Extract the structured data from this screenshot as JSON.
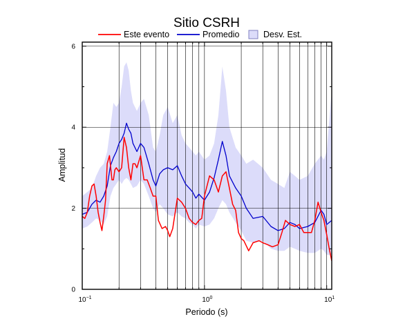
{
  "chart_data": {
    "type": "line",
    "title": "Sitio CSRH",
    "xlabel": "Periodo (s)",
    "ylabel": "Amplitud",
    "x_scale": "log",
    "xlim": [
      0.1,
      11
    ],
    "ylim": [
      0,
      6.1
    ],
    "x_ticks": [
      {
        "base": "10",
        "exp": "−1",
        "value": 0.1
      },
      {
        "base": "10",
        "exp": "0",
        "value": 1
      },
      {
        "base": "10",
        "exp": "1",
        "value": 10
      }
    ],
    "y_ticks": [
      0,
      2,
      4,
      6
    ],
    "grid": "vertical",
    "legend_position": "top",
    "colors": {
      "event": "#ff0000",
      "average": "#0000cc",
      "band": "#dcdcfa",
      "band_stroke": "#8080c0",
      "grid": "#000000"
    },
    "legend": [
      {
        "key": "event",
        "label": "Este evento",
        "kind": "line"
      },
      {
        "key": "average",
        "label": "Promedio",
        "kind": "line"
      },
      {
        "key": "band",
        "label": "Desv. Est.",
        "kind": "box"
      }
    ],
    "series": [
      {
        "name": "Este evento",
        "key": "event",
        "x": [
          0.1,
          0.105,
          0.11,
          0.115,
          0.12,
          0.125,
          0.13,
          0.135,
          0.14,
          0.145,
          0.15,
          0.155,
          0.16,
          0.167,
          0.175,
          0.18,
          0.185,
          0.19,
          0.2,
          0.21,
          0.22,
          0.23,
          0.24,
          0.25,
          0.26,
          0.27,
          0.28,
          0.3,
          0.32,
          0.34,
          0.36,
          0.38,
          0.4,
          0.42,
          0.45,
          0.48,
          0.5,
          0.52,
          0.55,
          0.6,
          0.65,
          0.7,
          0.75,
          0.8,
          0.85,
          0.9,
          0.95,
          1.0,
          1.1,
          1.2,
          1.3,
          1.4,
          1.5,
          1.6,
          1.7,
          1.8,
          1.9,
          2.0,
          2.1,
          2.3,
          2.5,
          2.8,
          3.0,
          3.3,
          3.6,
          4.0,
          4.3,
          4.6,
          5.0,
          5.5,
          6.0,
          6.5,
          7.0,
          7.5,
          8.0,
          8.5,
          9.0,
          9.5,
          10.0,
          10.5,
          11.0
        ],
        "y": [
          1.8,
          1.75,
          1.9,
          2.3,
          2.55,
          2.6,
          2.3,
          1.9,
          1.65,
          1.45,
          1.8,
          2.2,
          3.1,
          3.3,
          2.7,
          2.7,
          2.95,
          3.0,
          2.9,
          3.0,
          3.75,
          3.5,
          3.0,
          2.7,
          3.1,
          3.1,
          3.0,
          3.3,
          2.7,
          2.7,
          2.5,
          2.3,
          2.3,
          1.7,
          1.5,
          1.55,
          1.45,
          1.3,
          1.5,
          2.25,
          2.15,
          2.0,
          1.75,
          1.65,
          1.6,
          1.7,
          1.75,
          2.3,
          2.8,
          2.7,
          2.4,
          2.8,
          2.9,
          2.5,
          2.1,
          1.95,
          1.4,
          1.25,
          1.2,
          0.95,
          1.15,
          1.2,
          1.15,
          1.1,
          1.05,
          1.1,
          1.4,
          1.7,
          1.6,
          1.55,
          1.6,
          1.4,
          1.4,
          1.4,
          1.7,
          2.15,
          1.9,
          1.7,
          1.35,
          1.0,
          0.7
        ]
      },
      {
        "name": "Promedio",
        "key": "average",
        "x": [
          0.1,
          0.11,
          0.12,
          0.13,
          0.14,
          0.15,
          0.16,
          0.17,
          0.18,
          0.19,
          0.2,
          0.21,
          0.22,
          0.23,
          0.24,
          0.25,
          0.26,
          0.28,
          0.3,
          0.32,
          0.35,
          0.38,
          0.4,
          0.43,
          0.46,
          0.5,
          0.55,
          0.6,
          0.65,
          0.7,
          0.75,
          0.8,
          0.85,
          0.9,
          1.0,
          1.1,
          1.2,
          1.3,
          1.4,
          1.5,
          1.6,
          1.8,
          2.0,
          2.2,
          2.5,
          3.0,
          3.5,
          4.0,
          4.5,
          5.0,
          5.5,
          6.0,
          7.0,
          8.0,
          9.0,
          9.5,
          10.0,
          11.0
        ],
        "y": [
          1.85,
          1.9,
          2.1,
          2.2,
          2.15,
          2.3,
          2.55,
          3.05,
          3.25,
          3.4,
          3.6,
          3.7,
          3.85,
          4.1,
          3.95,
          3.85,
          3.6,
          3.4,
          3.6,
          3.5,
          3.1,
          2.7,
          2.55,
          2.85,
          2.95,
          3.0,
          2.95,
          3.05,
          2.8,
          2.6,
          2.5,
          2.4,
          2.25,
          2.35,
          2.2,
          2.4,
          2.75,
          3.2,
          3.65,
          3.3,
          2.8,
          2.5,
          2.3,
          2.0,
          1.75,
          1.8,
          1.55,
          1.45,
          1.5,
          1.65,
          1.6,
          1.5,
          1.55,
          1.65,
          1.95,
          1.85,
          1.6,
          1.7
        ]
      },
      {
        "name": "Desv. Est.",
        "key": "band",
        "x": [
          0.1,
          0.11,
          0.12,
          0.13,
          0.14,
          0.15,
          0.16,
          0.17,
          0.18,
          0.19,
          0.2,
          0.21,
          0.22,
          0.23,
          0.24,
          0.25,
          0.26,
          0.28,
          0.3,
          0.32,
          0.35,
          0.38,
          0.4,
          0.43,
          0.46,
          0.5,
          0.55,
          0.6,
          0.65,
          0.7,
          0.75,
          0.8,
          0.85,
          0.9,
          1.0,
          1.1,
          1.2,
          1.3,
          1.4,
          1.5,
          1.6,
          1.8,
          2.0,
          2.2,
          2.5,
          3.0,
          3.5,
          4.0,
          4.5,
          5.0,
          5.5,
          6.0,
          7.0,
          8.0,
          9.0,
          9.5,
          10.0,
          11.0
        ],
        "upper": [
          2.3,
          2.4,
          2.5,
          2.8,
          3.0,
          3.1,
          3.4,
          4.0,
          4.6,
          4.5,
          4.6,
          5.0,
          5.5,
          5.6,
          5.4,
          4.9,
          4.6,
          4.4,
          4.6,
          4.7,
          4.3,
          3.5,
          3.4,
          3.8,
          4.3,
          4.5,
          4.1,
          4.3,
          3.8,
          3.6,
          3.5,
          3.4,
          3.3,
          3.4,
          3.2,
          3.3,
          3.6,
          4.3,
          5.5,
          4.9,
          4.0,
          3.5,
          3.3,
          3.1,
          3.2,
          3.0,
          2.7,
          2.6,
          2.5,
          2.9,
          2.8,
          2.7,
          2.8,
          3.1,
          3.3,
          3.2,
          3.4,
          4.9
        ],
        "lower": [
          1.5,
          1.55,
          1.65,
          1.75,
          1.7,
          1.6,
          1.8,
          2.3,
          2.5,
          2.6,
          2.7,
          2.6,
          2.7,
          2.75,
          2.7,
          2.6,
          2.5,
          2.55,
          2.7,
          2.6,
          2.3,
          2.0,
          1.9,
          2.1,
          2.0,
          1.85,
          1.8,
          1.9,
          1.8,
          1.75,
          1.65,
          1.6,
          1.5,
          1.6,
          1.55,
          1.6,
          1.75,
          2.0,
          2.2,
          2.1,
          1.9,
          1.65,
          1.45,
          1.2,
          1.15,
          1.2,
          1.0,
          0.95,
          0.95,
          1.05,
          1.0,
          0.95,
          0.9,
          0.9,
          1.0,
          0.95,
          0.85,
          0.85
        ]
      }
    ]
  }
}
